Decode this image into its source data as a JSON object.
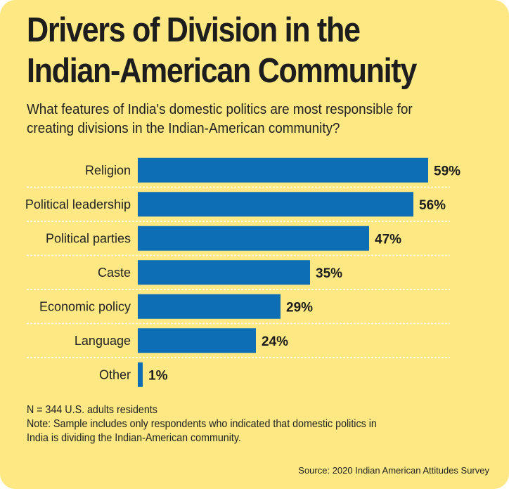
{
  "title_line1": "Drivers of Division in the",
  "title_line2": "Indian-American Community",
  "subtitle_line1": "What features of India's domestic politics are most responsible for",
  "subtitle_line2": "creating divisions in the Indian-American community?",
  "footnote": {
    "n": "N = 344 U.S. adults residents",
    "note_line1": "Note: Sample includes only respondents who indicated that domestic politics in",
    "note_line2": "India is dividing the Indian-American community."
  },
  "source": "Source: 2020 Indian American Attitudes Survey",
  "colors": {
    "background": "#fde883",
    "bar": "#0d6db5",
    "divider": "#ffffff"
  },
  "chart_data": {
    "type": "bar",
    "orientation": "horizontal",
    "title": "Drivers of Division in the Indian-American Community",
    "categories": [
      "Religion",
      "Political leadership",
      "Political parties",
      "Caste",
      "Economic policy",
      "Language",
      "Other"
    ],
    "values": [
      59,
      56,
      47,
      35,
      29,
      24,
      1
    ],
    "value_labels": [
      "59%",
      "56%",
      "47%",
      "35%",
      "29%",
      "24%",
      "1%"
    ],
    "unit": "%",
    "xlim": [
      0,
      100
    ],
    "grid": false,
    "legend": "none"
  }
}
